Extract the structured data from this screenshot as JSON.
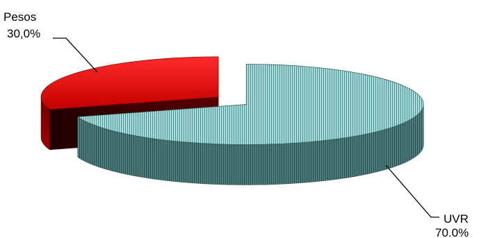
{
  "chart_data": {
    "type": "pie",
    "title": "",
    "slices": [
      {
        "name": "UVR",
        "value": 70.0,
        "label_pct": "70.0%",
        "color": "#8fd0d0",
        "shade": "#3a6b6b"
      },
      {
        "name": "Pesos",
        "value": 30.0,
        "label_pct": "30,0%",
        "color": "#e61010",
        "shade": "#7a0000"
      }
    ],
    "legend": "none",
    "style": "3d-exploded"
  }
}
